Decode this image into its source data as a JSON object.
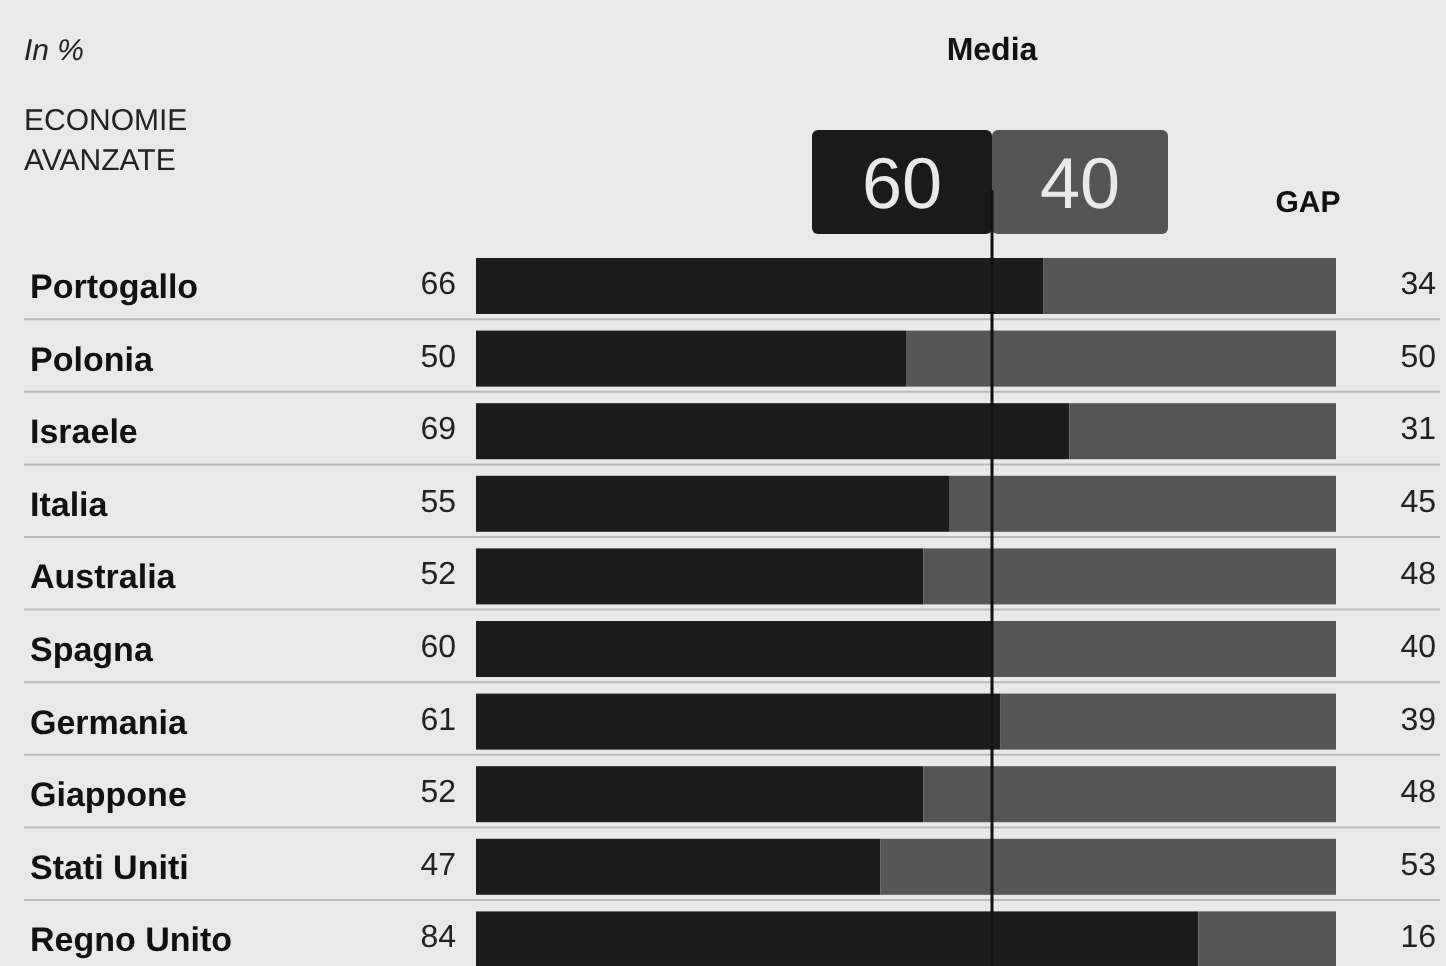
{
  "chart_data": {
    "type": "bar",
    "orientation": "horizontal",
    "stacked": true,
    "data_labels": true,
    "xlim": [
      0,
      100
    ],
    "categories": [
      "Portogallo",
      "Polonia",
      "Israele",
      "Italia",
      "Australia",
      "Spagna",
      "Germania",
      "Giappone",
      "Stati Uniti",
      "Regno Unito"
    ],
    "series": [
      {
        "color": "#1c1c1c",
        "values": [
          66,
          50,
          69,
          55,
          52,
          60,
          61,
          52,
          47,
          84
        ]
      },
      {
        "color": "#565656",
        "values": [
          34,
          50,
          31,
          45,
          48,
          40,
          39,
          48,
          53,
          16
        ]
      }
    ],
    "ref_lines": [
      {
        "axis": "x",
        "value": 60,
        "label": "Media",
        "color": "#111111"
      }
    ],
    "annotations": [
      "In %",
      "ECONOMIE AVANZATE",
      "60",
      "40",
      "GAP"
    ]
  }
}
